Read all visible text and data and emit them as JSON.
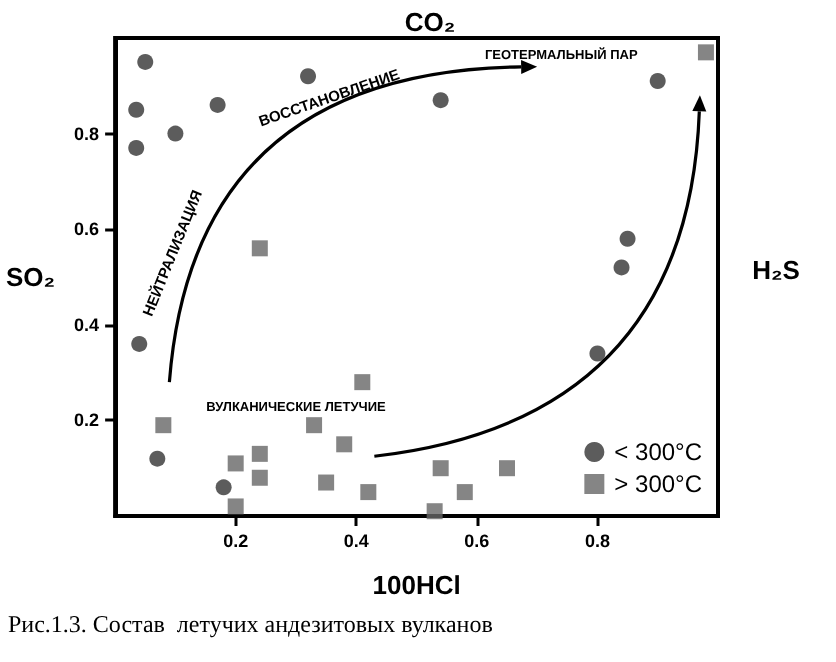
{
  "chart_data": {
    "type": "scatter",
    "xlabel": "100HCl",
    "ylabel": "SO₂",
    "annotations": [
      "CO₂",
      "H₂S",
      "НЕЙТРАЛИЗАЦИЯ",
      "ВОССТАНОВЛЕНИЕ",
      "ГЕОТЕРМАЛЬНЫЙ ПАР",
      "ВУЛКАНИЧЕСКИЕ ЛЕТУЧИЕ",
      "Рис.1.3. Состав  летучих андезитовых вулканов"
    ],
    "xlim": [
      0,
      1
    ],
    "ylim": [
      0,
      1
    ],
    "xticks": [
      0.2,
      0.4,
      0.6,
      0.8
    ],
    "yticks": [
      0.2,
      0.4,
      0.6,
      0.8
    ],
    "grid": false,
    "legend": "bottom right",
    "series": [
      {
        "name": "< 300°C",
        "color": "#333333",
        "marker": "circle",
        "x": [
          0.05,
          0.035,
          0.035,
          0.1,
          0.17,
          0.32,
          0.54,
          0.9,
          0.85,
          0.84,
          0.04,
          0.07,
          0.18,
          0.8
        ],
        "values": [
          0.95,
          0.85,
          0.77,
          0.8,
          0.86,
          0.92,
          0.87,
          0.91,
          0.58,
          0.52,
          0.36,
          0.12,
          0.06,
          0.34
        ]
      },
      {
        "name": "> 300°C",
        "color": "#666666",
        "marker": "square",
        "x": [
          0.24,
          0.08,
          0.2,
          0.24,
          0.24,
          0.2,
          0.41,
          0.33,
          0.38,
          0.35,
          0.42,
          0.54,
          0.53,
          0.65,
          0.58,
          0.98
        ],
        "values": [
          0.56,
          0.19,
          0.11,
          0.13,
          0.08,
          0.02,
          0.28,
          0.19,
          0.15,
          0.07,
          0.05,
          0.1,
          0.01,
          0.1,
          0.05,
          0.97
        ]
      }
    ]
  }
}
